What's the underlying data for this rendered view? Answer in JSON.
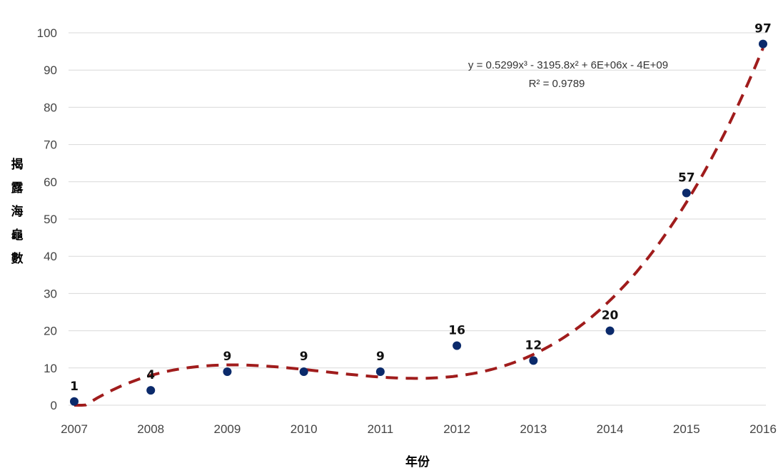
{
  "chart_data": {
    "type": "scatter",
    "xlabel": "年份",
    "ylabel": "揭露海龜數",
    "ylim": [
      0,
      100
    ],
    "yticks": [
      0,
      10,
      20,
      30,
      40,
      50,
      60,
      70,
      80,
      90,
      100
    ],
    "categories": [
      "2007",
      "2008",
      "2009",
      "2010",
      "2011",
      "2012",
      "2013",
      "2014",
      "2015",
      "2016"
    ],
    "series": [
      {
        "values": [
          1,
          4,
          9,
          9,
          9,
          16,
          12,
          20,
          57,
          97
        ],
        "color": "#0b2a6b"
      }
    ],
    "trendline": {
      "type": "polynomial",
      "order": 3,
      "style": "dashed",
      "color": "#a01c1c",
      "equation": "y = 0.5299x³ - 3195.8x² + 6E+06x - 4E+09",
      "r_squared": "R² = 0.9789"
    },
    "data_labels": [
      "1",
      "4",
      "9",
      "9",
      "9",
      "16",
      "12",
      "20",
      "57",
      "97"
    ],
    "grid": "horizontal",
    "legend": "none"
  }
}
